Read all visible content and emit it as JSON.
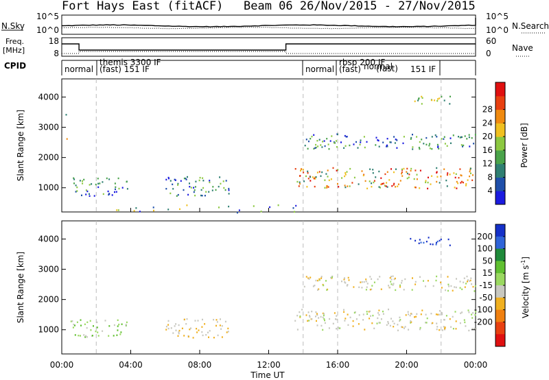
{
  "header": {
    "station_title": "Fort Hays East (fitACF)",
    "beam_date": "Beam 06  26/Nov/2015 - 27/Nov/2015"
  },
  "panels": {
    "nsky": {
      "left_label": "N.Sky",
      "left_ticks": [
        "10^5",
        "10^0"
      ],
      "right_label": "N.Search",
      "right_ticks": [
        "10^5",
        "10^0"
      ]
    },
    "freq": {
      "left_label_line1": "Freq.",
      "left_label_line2": "[MHz]",
      "left_ticks": [
        "18",
        "8"
      ],
      "right_label": "Nave",
      "right_ticks": [
        "60",
        "0"
      ]
    },
    "cpid": {
      "label": "CPID",
      "segments": [
        "normal",
        "themis 3300 IF",
        "(fast) 151 IF",
        "normal",
        "rbsp 200 IF",
        "(fast)",
        "normal",
        "(fast)",
        "151 IF"
      ]
    }
  },
  "chart_data": [
    {
      "type": "heatmap",
      "title": "",
      "xlabel": "",
      "ylabel": "Slant Range [km]",
      "yticks": [
        "1000",
        "2000",
        "3000",
        "4000"
      ],
      "xlim_hours": [
        0,
        24
      ],
      "ylim_km": [
        200,
        4600
      ],
      "colorbar": {
        "label": "Power [dB]",
        "ticks": [
          "4",
          "8",
          "12",
          "16",
          "20",
          "24",
          "28"
        ],
        "colors": [
          "#1b1be0",
          "#1f4faa",
          "#2f7f72",
          "#4aa34a",
          "#8cc840",
          "#f0c020",
          "#f08a10",
          "#e84010",
          "#e01010"
        ]
      },
      "regions": [
        {
          "t": [
            0.0,
            0.3
          ],
          "r": [
            3250,
            3450
          ],
          "level": "mixed-blue"
        },
        {
          "t": [
            0.0,
            0.3
          ],
          "r": [
            2600,
            2800
          ],
          "level": "mixed-orange"
        },
        {
          "t": [
            0.5,
            3.8
          ],
          "r": [
            750,
            1350
          ],
          "level": "blue-green"
        },
        {
          "t": [
            6.0,
            9.8
          ],
          "r": [
            750,
            1400
          ],
          "level": "blue-green"
        },
        {
          "t": [
            0.5,
            14.0
          ],
          "r": [
            200,
            450
          ],
          "level": "sparse-blue-green"
        },
        {
          "t": [
            13.5,
            24.0
          ],
          "r": [
            1000,
            1700
          ],
          "level": "orange-red"
        },
        {
          "t": [
            14.0,
            24.0
          ],
          "r": [
            2300,
            2800
          ],
          "level": "blue-green"
        },
        {
          "t": [
            20.0,
            22.5
          ],
          "r": [
            3800,
            4100
          ],
          "level": "green-yellow"
        }
      ]
    },
    {
      "type": "heatmap",
      "title": "",
      "xlabel": "Time UT",
      "ylabel": "Slant Range [km]",
      "xticks": [
        "00:00",
        "04:00",
        "08:00",
        "12:00",
        "16:00",
        "20:00",
        "00:00"
      ],
      "yticks": [
        "1000",
        "2000",
        "3000",
        "4000"
      ],
      "xlim_hours": [
        0,
        24
      ],
      "ylim_km": [
        200,
        4600
      ],
      "colorbar": {
        "label": "Velocity [m s-1]",
        "ticks": [
          "200",
          "100",
          "50",
          "15",
          "-15",
          "-50",
          "-100",
          "-200"
        ],
        "colors": [
          "#1530c8",
          "#2f64d8",
          "#1f8a3a",
          "#60c030",
          "#9ad860",
          "#c8c8c0",
          "#f0b020",
          "#f08010",
          "#e84010",
          "#e01010"
        ]
      },
      "regions": [
        {
          "t": [
            0.5,
            3.8
          ],
          "r": [
            750,
            1350
          ],
          "level": "green"
        },
        {
          "t": [
            6.0,
            9.8
          ],
          "r": [
            750,
            1400
          ],
          "level": "gray-orange"
        },
        {
          "t": [
            13.5,
            24.0
          ],
          "r": [
            1000,
            1700
          ],
          "level": "gray"
        },
        {
          "t": [
            14.0,
            24.0
          ],
          "r": [
            2300,
            2800
          ],
          "level": "gray"
        },
        {
          "t": [
            20.0,
            22.5
          ],
          "r": [
            3800,
            4100
          ],
          "level": "blue"
        }
      ]
    }
  ]
}
